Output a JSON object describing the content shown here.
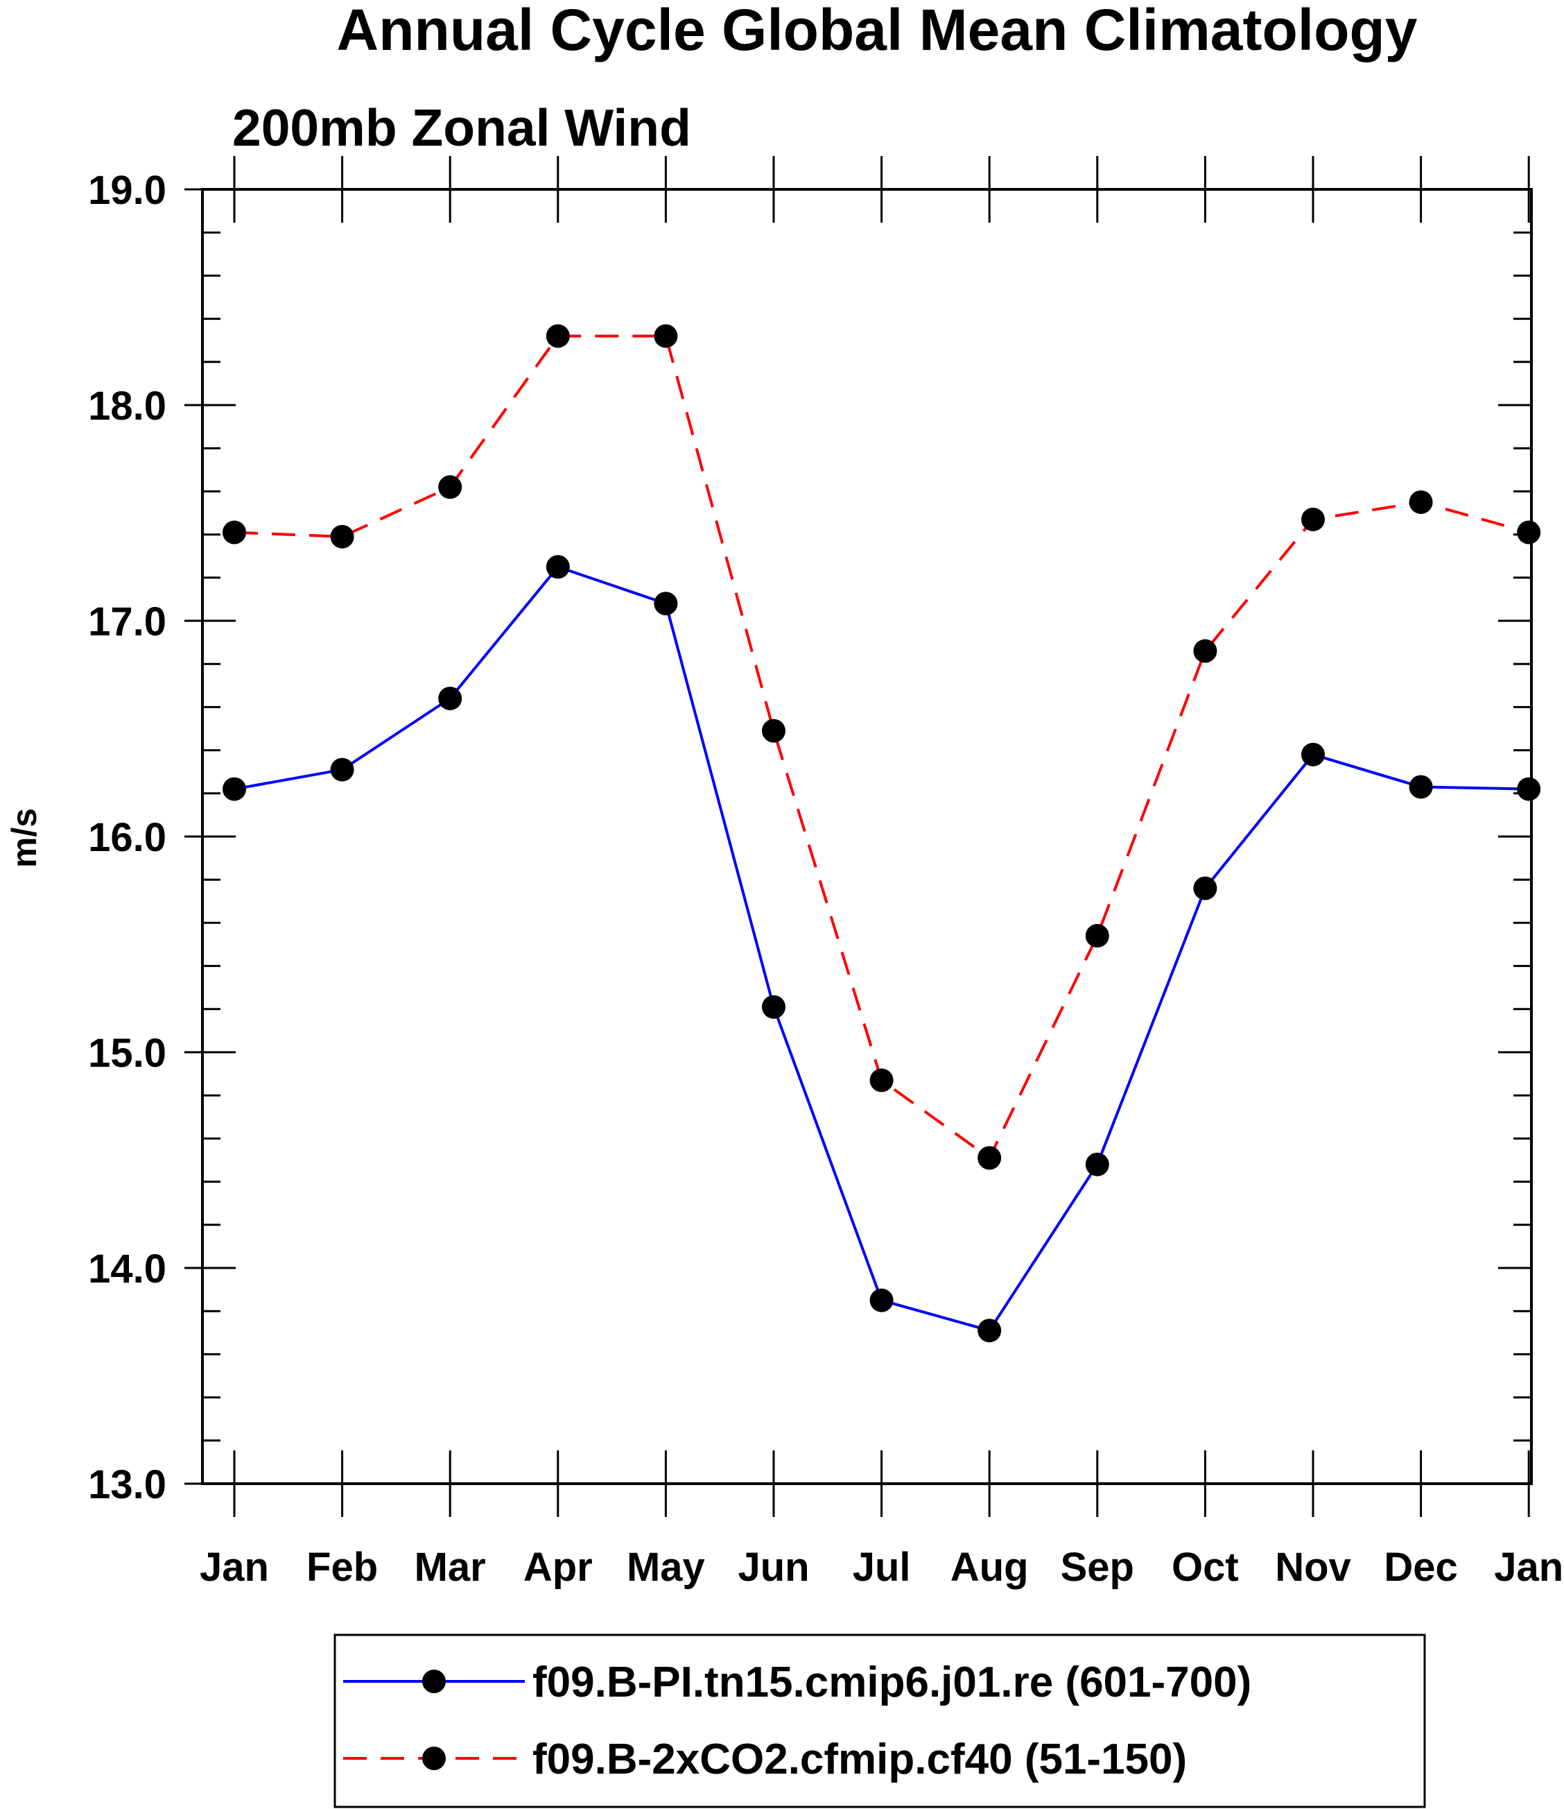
{
  "chart_data": {
    "type": "line",
    "title": "Annual Cycle Global Mean Climatology",
    "subtitle": "200mb Zonal Wind",
    "ylabel": "m/s",
    "xlabel": "",
    "categories": [
      "Jan",
      "Feb",
      "Mar",
      "Apr",
      "May",
      "Jun",
      "Jul",
      "Aug",
      "Sep",
      "Oct",
      "Nov",
      "Dec",
      "Jan"
    ],
    "ylim": [
      13.0,
      19.0
    ],
    "yticks": [
      "19.0",
      "18.0",
      "17.0",
      "16.0",
      "15.0",
      "14.0",
      "13.0"
    ],
    "ytick_values": [
      19.0,
      18.0,
      17.0,
      16.0,
      15.0,
      14.0,
      13.0
    ],
    "legend_position": "bottom",
    "series": [
      {
        "name": "f09.B-PI.tn15.cmip6.j01.re (601-700)",
        "color": "#0000ff",
        "dash": "solid",
        "values": [
          16.22,
          16.31,
          16.64,
          17.25,
          17.08,
          15.21,
          13.85,
          13.71,
          14.48,
          15.76,
          16.38,
          16.23,
          16.22
        ]
      },
      {
        "name": "f09.B-2xCO2.cfmip.cf40 (51-150)",
        "color": "#ff0000",
        "dash": "dashed",
        "values": [
          17.41,
          17.39,
          17.62,
          18.32,
          18.32,
          16.49,
          14.87,
          14.51,
          15.54,
          16.86,
          17.47,
          17.55,
          17.41
        ]
      }
    ]
  }
}
